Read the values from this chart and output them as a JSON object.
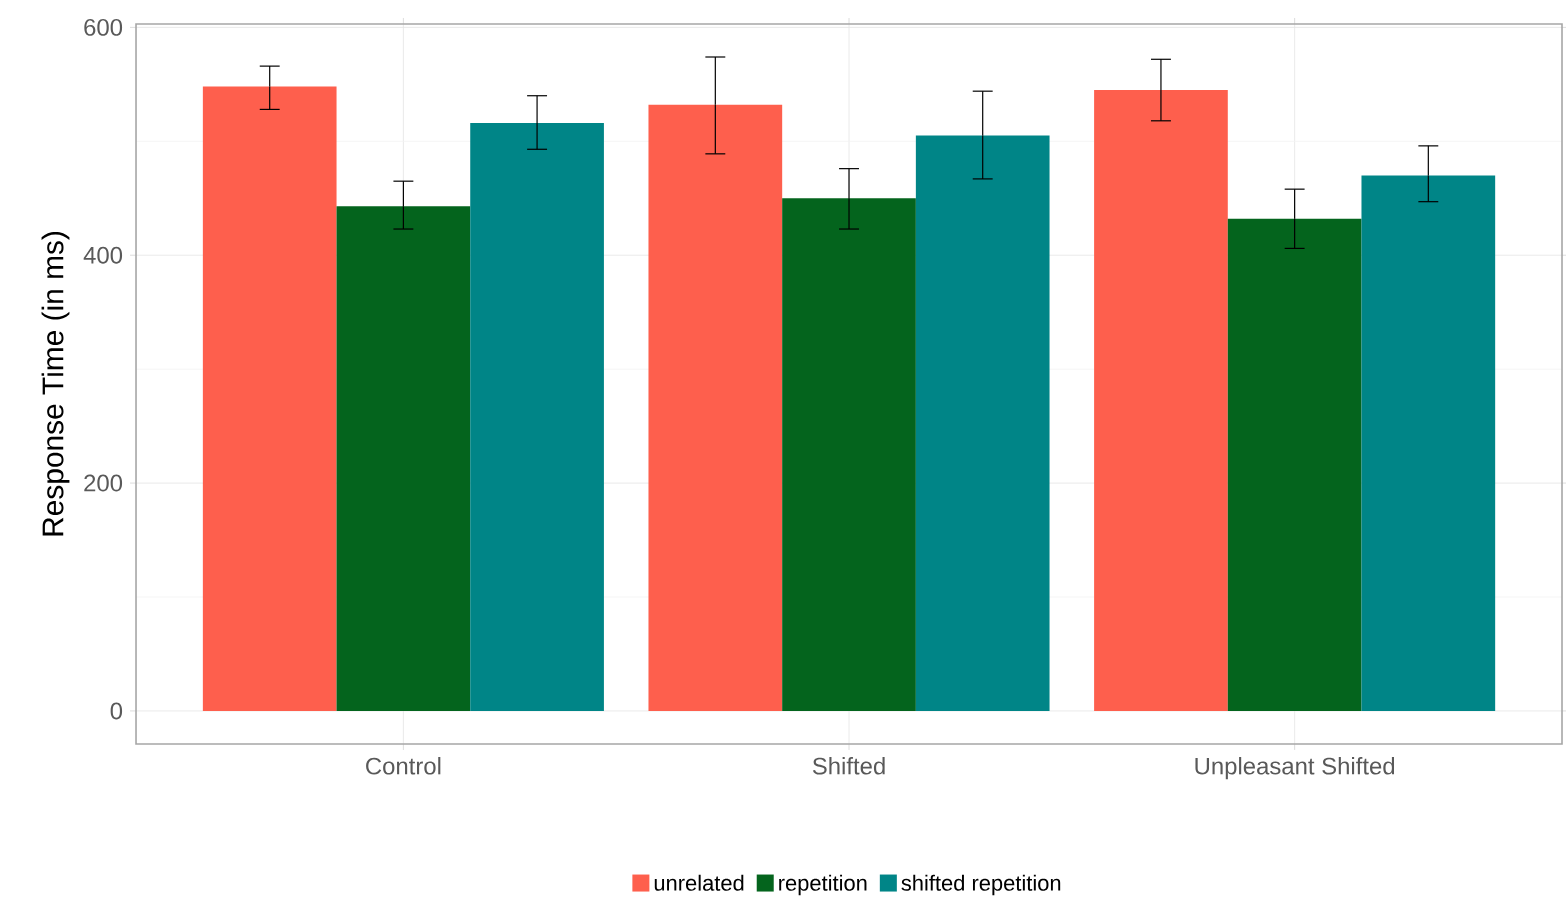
{
  "chart_data": {
    "type": "bar",
    "ylabel": "Response Time (in ms)",
    "categories": [
      "Control",
      "Shifted",
      "Unpleasant Shifted"
    ],
    "series": [
      {
        "name": "unrelated",
        "color": "#fe5f4d",
        "values": [
          548,
          532,
          545
        ],
        "errors": [
          [
            528,
            566
          ],
          [
            489,
            574
          ],
          [
            518,
            572
          ]
        ]
      },
      {
        "name": "repetition",
        "color": "#04641d",
        "values": [
          443,
          450,
          432
        ],
        "errors": [
          [
            423,
            465
          ],
          [
            423,
            476
          ],
          [
            406,
            458
          ]
        ]
      },
      {
        "name": "shifted repetition",
        "color": "#008587",
        "values": [
          516,
          505,
          470
        ],
        "errors": [
          [
            493,
            540
          ],
          [
            467,
            544
          ],
          [
            447,
            496
          ]
        ]
      }
    ],
    "ylim": [
      -29,
      603
    ],
    "yticks": [
      0,
      200,
      400,
      600
    ],
    "grid": true,
    "legend": "bottom"
  }
}
